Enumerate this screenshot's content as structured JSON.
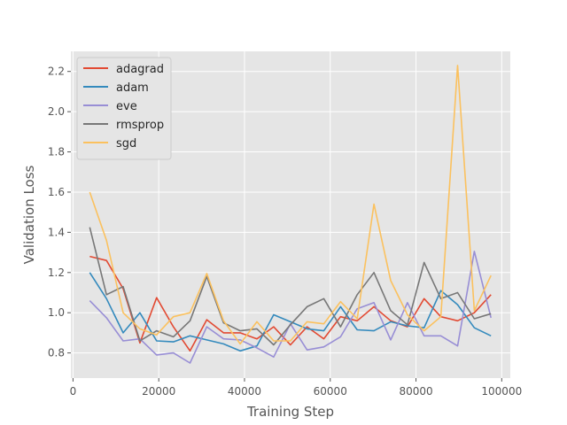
{
  "chart_data": {
    "type": "line",
    "title": "",
    "xlabel": "Training Step",
    "ylabel": "Validation Loss",
    "xlim": [
      -500,
      102000
    ],
    "ylim": [
      0.675,
      2.3
    ],
    "xticks": [
      0,
      20000,
      40000,
      60000,
      80000,
      100000
    ],
    "xtick_labels": [
      "0",
      "20000",
      "40000",
      "60000",
      "80000",
      "100000"
    ],
    "yticks": [
      0.8,
      1.0,
      1.2,
      1.4,
      1.6,
      1.8,
      2.0,
      2.2
    ],
    "ytick_labels": [
      "0.8",
      "1.0",
      "1.2",
      "1.4",
      "1.6",
      "1.8",
      "2.0",
      "2.2"
    ],
    "grid": true,
    "legend_position": "top-left",
    "x": [
      3900,
      7800,
      11700,
      15600,
      19500,
      23400,
      27300,
      31200,
      35100,
      39000,
      42900,
      46800,
      50700,
      54600,
      58500,
      62400,
      66300,
      70200,
      74100,
      78000,
      81900,
      85800,
      89700,
      93600,
      97500
    ],
    "series": [
      {
        "name": "adagrad",
        "color": "#e24a33",
        "values": [
          1.28,
          1.26,
          1.12,
          0.85,
          1.075,
          0.93,
          0.81,
          0.965,
          0.9,
          0.9,
          0.87,
          0.93,
          0.84,
          0.93,
          0.87,
          0.98,
          0.96,
          1.03,
          0.96,
          0.93,
          1.07,
          0.98,
          0.96,
          1.0,
          1.09
        ]
      },
      {
        "name": "adam",
        "color": "#348abd",
        "values": [
          1.2,
          1.07,
          0.9,
          1.0,
          0.86,
          0.855,
          0.885,
          0.865,
          0.845,
          0.81,
          0.835,
          0.99,
          0.955,
          0.92,
          0.91,
          1.03,
          0.915,
          0.91,
          0.955,
          0.935,
          0.925,
          1.11,
          1.04,
          0.925,
          0.885
        ]
      },
      {
        "name": "eve",
        "color": "#988ed5",
        "values": [
          1.06,
          0.975,
          0.86,
          0.87,
          0.79,
          0.8,
          0.75,
          0.93,
          0.87,
          0.865,
          0.825,
          0.78,
          0.945,
          0.815,
          0.83,
          0.88,
          1.02,
          1.05,
          0.865,
          1.05,
          0.885,
          0.885,
          0.835,
          1.305,
          0.975
        ]
      },
      {
        "name": "rmsprop",
        "color": "#777777",
        "values": [
          1.425,
          1.09,
          1.13,
          0.86,
          0.91,
          0.88,
          0.96,
          1.18,
          0.95,
          0.91,
          0.92,
          0.84,
          0.94,
          1.03,
          1.07,
          0.93,
          1.09,
          1.2,
          1.01,
          0.94,
          1.25,
          1.07,
          1.1,
          0.97,
          0.995
        ]
      },
      {
        "name": "sgd",
        "color": "#fbc15e",
        "values": [
          1.6,
          1.36,
          1.0,
          0.92,
          0.89,
          0.98,
          1.0,
          1.195,
          0.96,
          0.845,
          0.955,
          0.86,
          0.86,
          0.955,
          0.945,
          1.055,
          0.97,
          1.54,
          1.16,
          0.99,
          0.91,
          0.98,
          2.23,
          1.01,
          1.185
        ]
      }
    ]
  }
}
